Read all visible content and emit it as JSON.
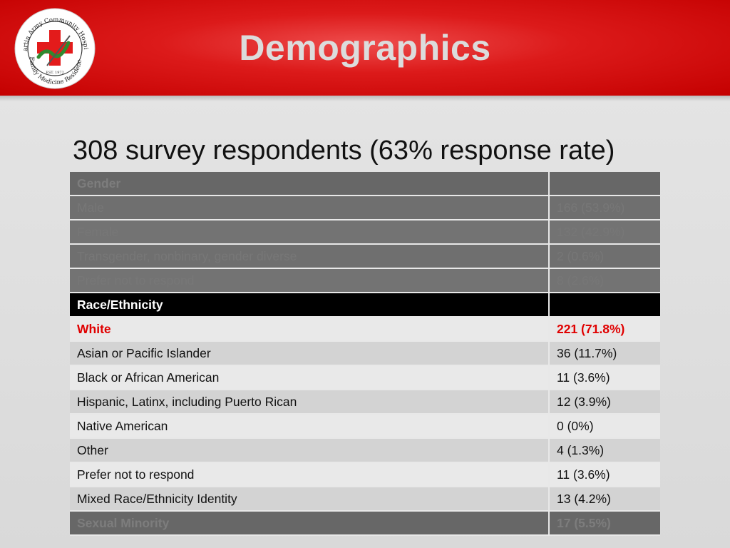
{
  "header": {
    "title": "Demographics",
    "logo_text_top": "Martin Army Community Hospital",
    "logo_text_bottom": "Family Medicine Residency",
    "logo_est": "EST. 1972"
  },
  "subtitle": "308 survey respondents (63% response rate)",
  "table": {
    "gender": {
      "header": "Gender",
      "rows": [
        {
          "label": "Male",
          "value": "166 (53.9%)"
        },
        {
          "label": "Female",
          "value": "132 (42.9%)"
        },
        {
          "label": "Transgender, nonbinary, gender diverse",
          "value": "2 (0.6%)"
        },
        {
          "label": "Prefer not to respond",
          "value": "8 (2.6%)"
        }
      ]
    },
    "race": {
      "header": "Race/Ethnicity",
      "rows": [
        {
          "label": "White",
          "value": "221 (71.8%)"
        },
        {
          "label": "Asian or Pacific Islander",
          "value": "36 (11.7%)"
        },
        {
          "label": "Black or African American",
          "value": "11 (3.6%)"
        },
        {
          "label": "Hispanic, Latinx, including Puerto Rican",
          "value": "12 (3.9%)"
        },
        {
          "label": "Native American",
          "value": "0 (0%)"
        },
        {
          "label": "Other",
          "value": "4 (1.3%)"
        },
        {
          "label": "Prefer not to respond",
          "value": "11 (3.6%)"
        },
        {
          "label": "Mixed Race/Ethnicity Identity",
          "value": "13 (4.2%)"
        }
      ]
    },
    "sexual_minority": {
      "label": "Sexual Minority",
      "value": "17 (5.5%)"
    }
  },
  "colors": {
    "header_red": "#c40000",
    "highlight_red": "#e00000",
    "title_gray": "#dcdcdc"
  }
}
